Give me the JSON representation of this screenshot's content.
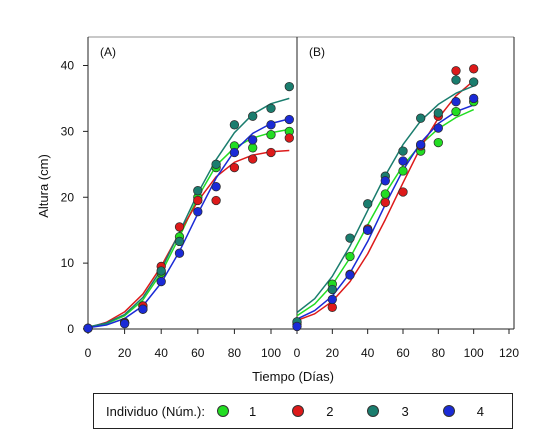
{
  "chart_data": {
    "type": "scatter",
    "ylabel": "Altura (cm)",
    "xlabel": "Tiempo (Días)",
    "ylim": [
      0,
      45
    ],
    "y_ticks": [
      0,
      10,
      20,
      30,
      40
    ],
    "grid": false,
    "legend_position": "bottom",
    "legend_title": "Individuo (Núm.):",
    "series_colors": {
      "1": "#22dd22",
      "2": "#dd1a1a",
      "3": "#1a7d6e",
      "4": "#1a2ad6"
    },
    "series_labels": [
      "1",
      "2",
      "3",
      "4"
    ],
    "panels": [
      {
        "label": "(A)",
        "xlim": [
          0,
          110
        ],
        "x_ticks": [
          0,
          20,
          40,
          60,
          80,
          100
        ],
        "series": [
          {
            "name": "1",
            "x": [
              0,
              20,
              30,
              40,
              50,
              60,
              70,
              80,
              90,
              100,
              110
            ],
            "y": [
              0.1,
              1.0,
              3.5,
              8.5,
              14.0,
              20.0,
              24.5,
              27.8,
              27.5,
              29.5,
              30.0
            ],
            "fit_x": [
              0,
              10,
              20,
              30,
              40,
              50,
              60,
              70,
              80,
              90,
              100,
              110
            ],
            "fit_y": [
              0.2,
              0.8,
              2.0,
              4.4,
              8.5,
              14.0,
              20.0,
              24.8,
              27.5,
              29.0,
              29.8,
              30.3
            ]
          },
          {
            "name": "2",
            "x": [
              0,
              20,
              30,
              40,
              50,
              60,
              70,
              80,
              90,
              100,
              110
            ],
            "y": [
              0.1,
              1.0,
              3.5,
              9.5,
              15.5,
              19.5,
              19.5,
              24.5,
              25.8,
              26.8,
              29.0
            ],
            "fit_x": [
              0,
              10,
              20,
              30,
              40,
              50,
              60,
              70,
              80,
              90,
              100,
              110
            ],
            "fit_y": [
              0.2,
              1.0,
              2.6,
              5.3,
              9.5,
              14.6,
              19.4,
              23.1,
              25.3,
              26.4,
              26.9,
              27.1
            ]
          },
          {
            "name": "3",
            "x": [
              0,
              20,
              30,
              40,
              50,
              60,
              70,
              80,
              90,
              100,
              110
            ],
            "y": [
              0.1,
              0.9,
              3.0,
              8.8,
              13.3,
              21.0,
              25.0,
              31.0,
              32.3,
              33.5,
              36.8
            ],
            "fit_x": [
              0,
              10,
              20,
              30,
              40,
              50,
              60,
              70,
              80,
              90,
              100,
              110
            ],
            "fit_y": [
              0.3,
              0.9,
              2.2,
              4.8,
              9.0,
              14.7,
              20.6,
              25.7,
              29.8,
              32.6,
              34.2,
              35.0
            ]
          },
          {
            "name": "4",
            "x": [
              0,
              20,
              30,
              40,
              50,
              60,
              70,
              80,
              90,
              100,
              110
            ],
            "y": [
              0.1,
              0.8,
              3.0,
              7.2,
              11.5,
              17.8,
              21.6,
              26.8,
              28.7,
              31.0,
              31.8
            ],
            "fit_x": [
              0,
              10,
              20,
              30,
              40,
              50,
              60,
              70,
              80,
              90,
              100,
              110
            ],
            "fit_y": [
              0.2,
              0.6,
              1.6,
              3.5,
              7.0,
              11.8,
              17.5,
              22.9,
              27.0,
              29.7,
              31.2,
              31.9
            ]
          }
        ]
      },
      {
        "label": "(B)",
        "xlim": [
          0,
          120
        ],
        "x_ticks": [
          0,
          20,
          40,
          60,
          80,
          100,
          120
        ],
        "series": [
          {
            "name": "1",
            "x": [
              0,
              20,
              30,
              40,
              50,
              60,
              70,
              80,
              90,
              100
            ],
            "y": [
              1.0,
              6.8,
              11.0,
              15.0,
              20.5,
              24.0,
              27.0,
              28.3,
              33.0,
              34.5
            ],
            "fit_x": [
              0,
              10,
              20,
              30,
              40,
              50,
              60,
              70,
              80,
              90,
              100
            ],
            "fit_y": [
              2.0,
              3.8,
              6.7,
              10.8,
              15.8,
              20.6,
              24.8,
              28.0,
              30.4,
              32.1,
              33.3
            ]
          },
          {
            "name": "2",
            "x": [
              0,
              20,
              30,
              40,
              50,
              60,
              70,
              80,
              90,
              100
            ],
            "y": [
              0.7,
              3.3,
              8.3,
              15.2,
              19.2,
              20.8,
              27.8,
              32.3,
              39.2,
              39.5
            ],
            "fit_x": [
              0,
              10,
              20,
              30,
              40,
              50,
              60,
              70,
              80,
              90,
              100
            ],
            "fit_y": [
              1.3,
              2.3,
              4.2,
              7.2,
              11.4,
              16.6,
              22.2,
              27.6,
              32.0,
              35.4,
              37.7
            ]
          },
          {
            "name": "3",
            "x": [
              0,
              20,
              30,
              40,
              50,
              60,
              70,
              80,
              90,
              100
            ],
            "y": [
              1.1,
              6.0,
              13.8,
              19.0,
              23.2,
              27.0,
              32.0,
              32.8,
              37.8,
              37.5
            ],
            "fit_x": [
              0,
              10,
              20,
              30,
              40,
              50,
              60,
              70,
              80,
              90,
              100
            ],
            "fit_y": [
              2.5,
              4.6,
              8.0,
              12.6,
              18.0,
              23.3,
              28.0,
              31.6,
              34.1,
              35.8,
              36.9
            ]
          },
          {
            "name": "4",
            "x": [
              0,
              20,
              30,
              40,
              50,
              60,
              70,
              80,
              90,
              100
            ],
            "y": [
              0.4,
              4.5,
              8.2,
              15.0,
              22.5,
              25.5,
              28.0,
              30.5,
              34.5,
              35.0
            ],
            "fit_x": [
              0,
              10,
              20,
              30,
              40,
              50,
              60,
              70,
              80,
              90,
              100
            ],
            "fit_y": [
              1.5,
              2.8,
              5.0,
              8.5,
              13.3,
              18.9,
              24.1,
              28.3,
              31.2,
              33.0,
              34.0
            ]
          }
        ]
      }
    ]
  }
}
